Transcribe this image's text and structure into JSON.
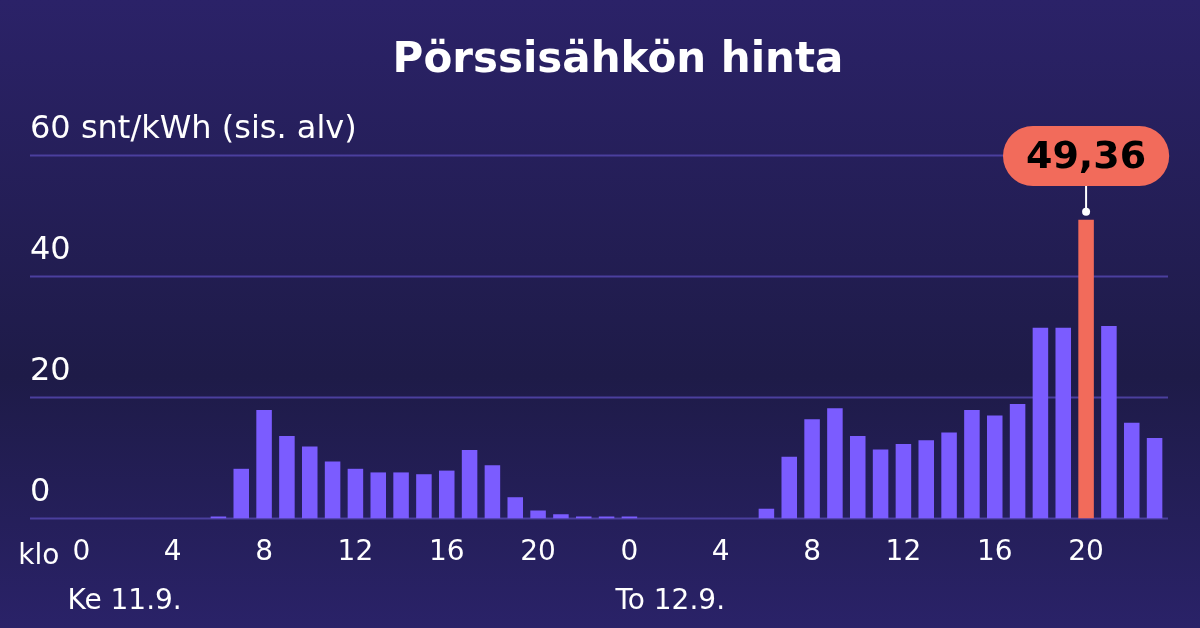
{
  "chart_data": {
    "type": "bar",
    "title": "Pörssisähkön hinta",
    "xlabel": "klo",
    "categories": [
      "0",
      null,
      null,
      null,
      "4",
      null,
      null,
      null,
      "8",
      null,
      null,
      null,
      "12",
      null,
      null,
      null,
      "16",
      null,
      null,
      null,
      "20",
      null,
      null,
      null,
      "0",
      null,
      null,
      null,
      "4",
      null,
      null,
      null,
      "8",
      null,
      null,
      null,
      "12",
      null,
      null,
      null,
      "16",
      null,
      null,
      null,
      "20",
      null,
      null,
      null
    ],
    "values": [
      0,
      0,
      0,
      0,
      0,
      0,
      0.3,
      8.2,
      17.9,
      13.6,
      11.9,
      9.4,
      8.2,
      7.6,
      7.6,
      7.3,
      7.9,
      11.3,
      8.8,
      3.5,
      1.3,
      0.7,
      0.3,
      0.3,
      0.3,
      0,
      0,
      0,
      0,
      0,
      1.6,
      10.2,
      16.4,
      18.2,
      13.6,
      11.4,
      12.3,
      12.9,
      14.2,
      17.9,
      17.0,
      18.9,
      31.5,
      31.5,
      49.36,
      31.8,
      15.8,
      13.3
    ],
    "colors": [
      "#7b5cff",
      "#7b5cff",
      "#7b5cff",
      "#7b5cff",
      "#7b5cff",
      "#7b5cff",
      "#7b5cff",
      "#7b5cff",
      "#7b5cff",
      "#7b5cff",
      "#7b5cff",
      "#7b5cff",
      "#7b5cff",
      "#7b5cff",
      "#7b5cff",
      "#7b5cff",
      "#7b5cff",
      "#7b5cff",
      "#7b5cff",
      "#7b5cff",
      "#7b5cff",
      "#7b5cff",
      "#7b5cff",
      "#7b5cff",
      "#7b5cff",
      "#7b5cff",
      "#7b5cff",
      "#7b5cff",
      "#7b5cff",
      "#7b5cff",
      "#7b5cff",
      "#7b5cff",
      "#7b5cff",
      "#7b5cff",
      "#7b5cff",
      "#7b5cff",
      "#7b5cff",
      "#7b5cff",
      "#7b5cff",
      "#7b5cff",
      "#7b5cff",
      "#7b5cff",
      "#7b5cff",
      "#7b5cff",
      "#f26b5b",
      "#7b5cff",
      "#7b5cff",
      "#7b5cff"
    ],
    "value_labels": [
      null,
      null,
      null,
      null,
      null,
      null,
      null,
      null,
      null,
      null,
      null,
      null,
      null,
      null,
      null,
      null,
      null,
      null,
      null,
      null,
      null,
      null,
      null,
      null,
      null,
      null,
      null,
      null,
      null,
      null,
      null,
      null,
      null,
      null,
      null,
      null,
      null,
      null,
      null,
      null,
      null,
      null,
      null,
      null,
      "49,36",
      null,
      null,
      null
    ],
    "ylim": [
      0,
      60
    ],
    "yticks": [
      0,
      20,
      40,
      {
        "value": 60,
        "label": "60 snt/kWh (sis. alv)"
      }
    ],
    "grid": "y",
    "annotations": [
      "Ke 11.9.",
      "To 12.9."
    ]
  }
}
